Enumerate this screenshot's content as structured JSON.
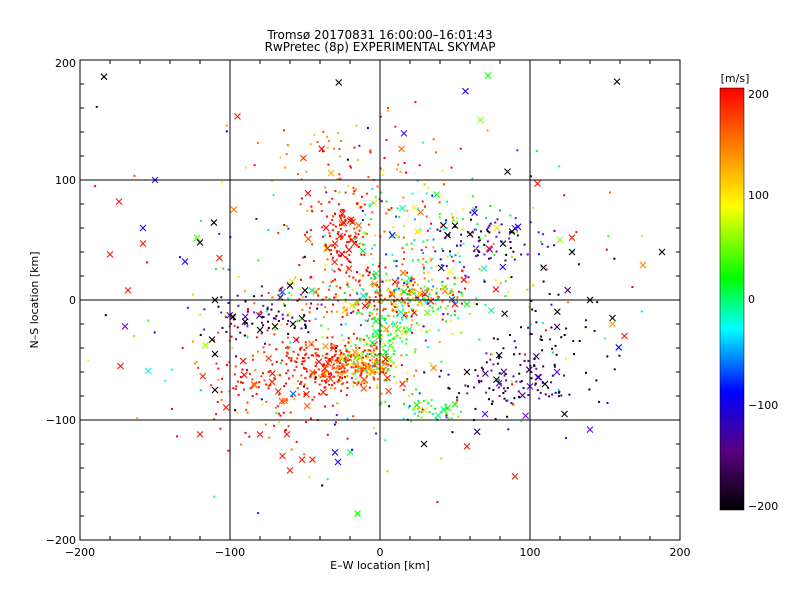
{
  "chart_data": {
    "type": "scatter",
    "title": "Tromsø 20170831 16:00:00–16:01:43",
    "subtitle": "RwPretec (8p) EXPERIMENTAL SKYMAP",
    "xlabel": "E–W location [km]",
    "ylabel": "N–S location [km]",
    "xlim": [
      -200,
      200
    ],
    "ylim": [
      -200,
      200
    ],
    "xticks": [
      "−200",
      "−100",
      "0",
      "100",
      "200"
    ],
    "yticks": [
      "−200",
      "−100",
      "0",
      "100",
      "200"
    ],
    "grid": true,
    "colorbar": {
      "unit": "[m/s]",
      "range": [
        -200,
        200
      ],
      "ticks": [
        "200",
        "100",
        "0",
        "−100",
        "−200"
      ],
      "colors": [
        "#000000",
        "#7f00ff",
        "#0000ff",
        "#00ffff",
        "#00ff00",
        "#ffff00",
        "#ff7f00",
        "#ff0000"
      ]
    },
    "marker_types": [
      "dot",
      "cross"
    ],
    "clusters": [
      {
        "x": -25,
        "y": -55,
        "sx": 15,
        "sy": 10,
        "v": 180,
        "vs": 30,
        "n": 220
      },
      {
        "x": -10,
        "y": -55,
        "sx": 10,
        "sy": 6,
        "v": 130,
        "vs": 30,
        "n": 120
      },
      {
        "x": -55,
        "y": -60,
        "sx": 25,
        "sy": 20,
        "v": 190,
        "vs": 20,
        "n": 160
      },
      {
        "x": -25,
        "y": 50,
        "sx": 10,
        "sy": 18,
        "v": 190,
        "vs": 15,
        "n": 110
      },
      {
        "x": 0,
        "y": 5,
        "sx": 30,
        "sy": 12,
        "v": 160,
        "vs": 50,
        "n": 220
      },
      {
        "x": 20,
        "y": 0,
        "sx": 25,
        "sy": 15,
        "v": 20,
        "vs": 60,
        "n": 160
      },
      {
        "x": 0,
        "y": -35,
        "sx": 15,
        "sy": 20,
        "v": 40,
        "vs": 40,
        "n": 120
      },
      {
        "x": -75,
        "y": -15,
        "sx": 20,
        "sy": 10,
        "v": -170,
        "vs": 30,
        "n": 70
      },
      {
        "x": 80,
        "y": -70,
        "sx": 20,
        "sy": 15,
        "v": -170,
        "vs": 30,
        "n": 90
      },
      {
        "x": 75,
        "y": 50,
        "sx": 18,
        "sy": 12,
        "v": -160,
        "vs": 40,
        "n": 70
      },
      {
        "x": 30,
        "y": 55,
        "sx": 30,
        "sy": 25,
        "v": 40,
        "vs": 90,
        "n": 120
      },
      {
        "x": -20,
        "y": 100,
        "sx": 30,
        "sy": 30,
        "v": 170,
        "vs": 40,
        "n": 90
      },
      {
        "x": 110,
        "y": -40,
        "sx": 20,
        "sy": 25,
        "v": -190,
        "vs": 15,
        "n": 70
      },
      {
        "x": 30,
        "y": -90,
        "sx": 15,
        "sy": 6,
        "v": 20,
        "vs": 60,
        "n": 50
      },
      {
        "x": -90,
        "y": -60,
        "sx": 20,
        "sy": 30,
        "v": 180,
        "vs": 30,
        "n": 60
      },
      {
        "x": 0,
        "y": 0,
        "sx": 90,
        "sy": 70,
        "v": 0,
        "vs": 150,
        "n": 260
      }
    ],
    "crosses": [
      {
        "x": -184,
        "y": 186,
        "v": -200
      },
      {
        "x": -95,
        "y": 153,
        "v": 190
      },
      {
        "x": 158,
        "y": 182,
        "v": -200
      },
      {
        "x": 72,
        "y": 187,
        "v": 30
      },
      {
        "x": 57,
        "y": 174,
        "v": -110
      },
      {
        "x": -150,
        "y": 100,
        "v": -110
      },
      {
        "x": -174,
        "y": 82,
        "v": 190
      },
      {
        "x": -158,
        "y": 60,
        "v": -100
      },
      {
        "x": -158,
        "y": 47,
        "v": 190
      },
      {
        "x": -180,
        "y": 38,
        "v": 190
      },
      {
        "x": -130,
        "y": 32,
        "v": -100
      },
      {
        "x": -120,
        "y": 48,
        "v": -200
      },
      {
        "x": -107,
        "y": 35,
        "v": 190
      },
      {
        "x": -168,
        "y": 8,
        "v": 190
      },
      {
        "x": -170,
        "y": -22,
        "v": -150
      },
      {
        "x": -173,
        "y": -55,
        "v": 190
      },
      {
        "x": -110,
        "y": -75,
        "v": -200
      },
      {
        "x": -110,
        "y": -45,
        "v": -200
      },
      {
        "x": -112,
        "y": -33,
        "v": -200
      },
      {
        "x": -110,
        "y": 0,
        "v": -200
      },
      {
        "x": -98,
        "y": -14,
        "v": -200
      },
      {
        "x": -120,
        "y": -112,
        "v": 190
      },
      {
        "x": -80,
        "y": -112,
        "v": 190
      },
      {
        "x": -62,
        "y": -112,
        "v": 190
      },
      {
        "x": -65,
        "y": -130,
        "v": 190
      },
      {
        "x": -60,
        "y": -142,
        "v": 190
      },
      {
        "x": -52,
        "y": -133,
        "v": 190
      },
      {
        "x": -45,
        "y": -133,
        "v": 190
      },
      {
        "x": -30,
        "y": -127,
        "v": -100
      },
      {
        "x": -28,
        "y": -135,
        "v": -100
      },
      {
        "x": -15,
        "y": -178,
        "v": 30
      },
      {
        "x": 58,
        "y": -122,
        "v": 190
      },
      {
        "x": 90,
        "y": -147,
        "v": 190
      },
      {
        "x": 140,
        "y": -108,
        "v": -130
      },
      {
        "x": 123,
        "y": -95,
        "v": -200
      },
      {
        "x": 155,
        "y": -15,
        "v": -200
      },
      {
        "x": 155,
        "y": -20,
        "v": 130
      },
      {
        "x": 163,
        "y": -30,
        "v": 190
      },
      {
        "x": 188,
        "y": 40,
        "v": -200
      },
      {
        "x": 120,
        "y": 50,
        "v": 60
      },
      {
        "x": 128,
        "y": 52,
        "v": 190
      },
      {
        "x": 128,
        "y": 40,
        "v": -200
      },
      {
        "x": 109,
        "y": 27,
        "v": -200
      },
      {
        "x": 140,
        "y": 0,
        "v": -200
      },
      {
        "x": 118,
        "y": -60,
        "v": -130
      },
      {
        "x": 110,
        "y": -70,
        "v": -200
      },
      {
        "x": 100,
        "y": -72,
        "v": -130
      },
      {
        "x": 85,
        "y": 107,
        "v": -200
      },
      {
        "x": 105,
        "y": 97,
        "v": 190
      },
      {
        "x": 67,
        "y": 150,
        "v": 60
      },
      {
        "x": 92,
        "y": 61,
        "v": -100
      },
      {
        "x": 88,
        "y": 57,
        "v": -200
      },
      {
        "x": 82,
        "y": 47,
        "v": -200
      },
      {
        "x": 78,
        "y": 60,
        "v": 100
      },
      {
        "x": 60,
        "y": 55,
        "v": -200
      },
      {
        "x": 50,
        "y": 62,
        "v": -200
      },
      {
        "x": 45,
        "y": 54,
        "v": -200
      },
      {
        "x": 25,
        "y": 57,
        "v": 100
      },
      {
        "x": -25,
        "y": 72,
        "v": 190
      },
      {
        "x": -20,
        "y": 66,
        "v": 190
      },
      {
        "x": -30,
        "y": 47,
        "v": 190
      },
      {
        "x": -35,
        "y": 43,
        "v": 190
      },
      {
        "x": -17,
        "y": 47,
        "v": 190
      },
      {
        "x": 70,
        "y": -95,
        "v": -130
      },
      {
        "x": 50,
        "y": -87,
        "v": 30
      },
      {
        "x": 45,
        "y": -90,
        "v": 30
      },
      {
        "x": 30,
        "y": -92,
        "v": 100
      },
      {
        "x": 58,
        "y": -60,
        "v": -200
      },
      {
        "x": -58,
        "y": -20,
        "v": -200
      },
      {
        "x": -70,
        "y": -22,
        "v": -200
      },
      {
        "x": -80,
        "y": -25,
        "v": -200
      },
      {
        "x": -90,
        "y": -18,
        "v": -200
      },
      {
        "x": -60,
        "y": 12,
        "v": -200
      },
      {
        "x": -50,
        "y": 8,
        "v": -200
      },
      {
        "x": 10,
        "y": 15,
        "v": 190
      },
      {
        "x": 30,
        "y": 5,
        "v": 190
      },
      {
        "x": -10,
        "y": -5,
        "v": 190
      },
      {
        "x": 5,
        "y": -65,
        "v": 190
      },
      {
        "x": 15,
        "y": -70,
        "v": 190
      },
      {
        "x": -5,
        "y": -60,
        "v": 130
      }
    ]
  }
}
